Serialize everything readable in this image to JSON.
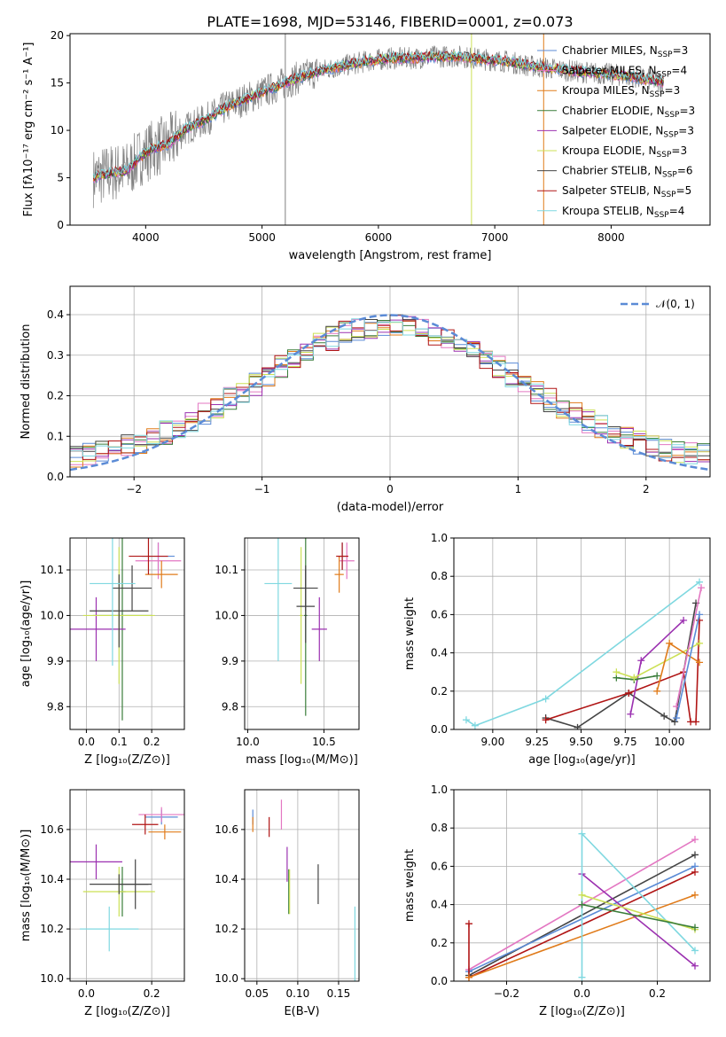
{
  "figure": {
    "title": "PLATE=1698, MJD=53146, FIBERID=0001, z=0.073"
  },
  "colors": {
    "grid": "#b0b0b0",
    "data_spectrum": "#808080",
    "normal_curve": "#5b8bd6"
  },
  "models": [
    {
      "key": "chabrier_miles",
      "label": "Chabrier MILES, N",
      "nssp": "3",
      "color": "#5b8bd6"
    },
    {
      "key": "salpeter_miles",
      "label": "Salpeter MILES, N",
      "nssp": "4",
      "color": "#e377c2"
    },
    {
      "key": "kroupa_miles",
      "label": "Kroupa MILES, N",
      "nssp": "3",
      "color": "#e07b1a"
    },
    {
      "key": "chabrier_elodie",
      "label": "Chabrier ELODIE, N",
      "nssp": "3",
      "color": "#3a7d3a"
    },
    {
      "key": "salpeter_elodie",
      "label": "Salpeter ELODIE, N",
      "nssp": "3",
      "color": "#9b30b0"
    },
    {
      "key": "kroupa_elodie",
      "label": "Kroupa ELODIE, N",
      "nssp": "3",
      "color": "#cce055"
    },
    {
      "key": "chabrier_stelib",
      "label": "Chabrier STELIB, N",
      "nssp": "6",
      "color": "#444444"
    },
    {
      "key": "salpeter_stelib",
      "label": "Salpeter STELIB, N",
      "nssp": "5",
      "color": "#b01515"
    },
    {
      "key": "kroupa_stelib",
      "label": "Kroupa STELIB, N",
      "nssp": "4",
      "color": "#7fd8e0"
    }
  ],
  "chart_data": [
    {
      "id": "spectrum",
      "type": "line",
      "xlabel": "wavelength [Angstrom, rest frame]",
      "ylabel_html": "Flux [fλ10⁻¹⁷ erg cm⁻² s⁻¹ A⁻¹]",
      "xlim": [
        3350,
        8850
      ],
      "ylim": [
        0,
        20.2
      ],
      "xticks": [
        4000,
        5000,
        6000,
        7000,
        8000
      ],
      "yticks": [
        0,
        5,
        10,
        15,
        20
      ],
      "legend_placement": "right",
      "grid": false,
      "continuum": {
        "x": [
          3550,
          3700,
          3850,
          3950,
          4050,
          4200,
          4350,
          4500,
          4700,
          4900,
          5100,
          5300,
          5500,
          5700,
          5900,
          6100,
          6300,
          6500,
          6700,
          6900,
          7100,
          7300,
          7500,
          7700,
          7900,
          8100,
          8300,
          8450
        ],
        "y": [
          5.0,
          5.5,
          5.8,
          7.2,
          8.0,
          8.6,
          10.2,
          11.0,
          12.5,
          13.5,
          14.5,
          15.5,
          16.3,
          16.8,
          17.3,
          17.6,
          17.6,
          17.8,
          17.8,
          17.5,
          17.3,
          16.8,
          16.5,
          16.2,
          16.0,
          15.8,
          15.4,
          15.1
        ]
      },
      "spike_lines": [
        {
          "x": 5200,
          "color": "#808080"
        },
        {
          "x": 6800,
          "color": "#cce055"
        },
        {
          "x": 7420,
          "color": "#e07b1a"
        }
      ]
    },
    {
      "id": "residuals",
      "type": "histogram",
      "xlabel": "(data-model)/error",
      "ylabel": "Normed distribution",
      "xlim": [
        -2.5,
        2.5
      ],
      "ylim": [
        0,
        0.47
      ],
      "xticks": [
        -2,
        -1,
        0,
        1,
        2
      ],
      "yticks": [
        0.0,
        0.1,
        0.2,
        0.3,
        0.4
      ],
      "grid": true,
      "legend": "𝒩(0, 1)",
      "legend_placement": "top-right",
      "bins": {
        "start": -2.5,
        "width": 0.1
      }
    },
    {
      "id": "age_vs_Z",
      "type": "errorbar",
      "xlabel": "Z [log₁₀(Z/Z⊙)]",
      "ylabel": "age  [log₁₀(age/yr)]",
      "xlim": [
        -0.05,
        0.3
      ],
      "ylim": [
        9.75,
        10.17
      ],
      "xticks": [
        0.0,
        0.1,
        0.2
      ],
      "yticks": [
        9.8,
        9.9,
        10.0,
        10.1
      ],
      "grid": true,
      "points": [
        {
          "m": 0,
          "x": 0.22,
          "y": 10.13,
          "xe": 0.05,
          "ye": 0.03
        },
        {
          "m": 1,
          "x": 0.22,
          "y": 10.12,
          "xe": 0.07,
          "ye": 0.04
        },
        {
          "m": 2,
          "x": 0.23,
          "y": 10.09,
          "xe": 0.05,
          "ye": 0.03
        },
        {
          "m": 3,
          "x": 0.11,
          "y": 10.0,
          "xe": 0.09,
          "ye": 0.23
        },
        {
          "m": 4,
          "x": 0.03,
          "y": 9.97,
          "xe": 0.09,
          "ye": 0.07
        },
        {
          "m": 5,
          "x": 0.1,
          "y": 10.0,
          "xe": 0.11,
          "ye": 0.15
        },
        {
          "m": 6,
          "x": 0.1,
          "y": 10.01,
          "xe": 0.09,
          "ye": 0.08
        },
        {
          "m": 6,
          "x": 0.14,
          "y": 10.06,
          "xe": 0.06,
          "ye": 0.05
        },
        {
          "m": 7,
          "x": 0.19,
          "y": 10.13,
          "xe": 0.06,
          "ye": 0.04
        },
        {
          "m": 8,
          "x": 0.08,
          "y": 10.07,
          "xe": 0.07,
          "ye": 0.18
        }
      ]
    },
    {
      "id": "age_vs_mass",
      "type": "errorbar",
      "xlabel": "mass [log₁₀(M/M⊙)]",
      "ylabel": "",
      "xlim": [
        9.98,
        10.73
      ],
      "ylim": [
        9.75,
        10.17
      ],
      "xticks": [
        10.0,
        10.5
      ],
      "yticks": [
        9.8,
        9.9,
        10.0,
        10.1
      ],
      "grid": true,
      "points": [
        {
          "m": 0,
          "x": 10.62,
          "y": 10.13,
          "xe": 0.02,
          "ye": 0.03
        },
        {
          "m": 1,
          "x": 10.65,
          "y": 10.12,
          "xe": 0.05,
          "ye": 0.04
        },
        {
          "m": 2,
          "x": 10.6,
          "y": 10.09,
          "xe": 0.03,
          "ye": 0.04
        },
        {
          "m": 3,
          "x": 10.38,
          "y": 10.0,
          "xe": 0.01,
          "ye": 0.22
        },
        {
          "m": 4,
          "x": 10.47,
          "y": 9.97,
          "xe": 0.05,
          "ye": 0.07
        },
        {
          "m": 5,
          "x": 10.35,
          "y": 10.0,
          "xe": 0.01,
          "ye": 0.15
        },
        {
          "m": 6,
          "x": 10.38,
          "y": 10.02,
          "xe": 0.06,
          "ye": 0.08
        },
        {
          "m": 6,
          "x": 10.38,
          "y": 10.06,
          "xe": 0.08,
          "ye": 0.05
        },
        {
          "m": 7,
          "x": 10.62,
          "y": 10.13,
          "xe": 0.04,
          "ye": 0.03
        },
        {
          "m": 8,
          "x": 10.2,
          "y": 10.07,
          "xe": 0.09,
          "ye": 0.17
        }
      ]
    },
    {
      "id": "mass_vs_Z",
      "type": "errorbar",
      "xlabel": "Z [log₁₀(Z/Z⊙)]",
      "ylabel": "mass [log₁₀(M/M⊙)]",
      "xlim": [
        -0.05,
        0.3
      ],
      "ylim": [
        9.99,
        10.76
      ],
      "xticks": [
        0.0,
        0.2
      ],
      "yticks": [
        10.0,
        10.2,
        10.4,
        10.6
      ],
      "grid": true,
      "points": [
        {
          "m": 0,
          "x": 0.23,
          "y": 10.65,
          "xe": 0.05,
          "ye": 0.03
        },
        {
          "m": 1,
          "x": 0.23,
          "y": 10.66,
          "xe": 0.07,
          "ye": 0.03
        },
        {
          "m": 2,
          "x": 0.24,
          "y": 10.59,
          "xe": 0.05,
          "ye": 0.03
        },
        {
          "m": 3,
          "x": 0.11,
          "y": 10.35,
          "xe": 0.01,
          "ye": 0.1
        },
        {
          "m": 4,
          "x": 0.03,
          "y": 10.47,
          "xe": 0.08,
          "ye": 0.07
        },
        {
          "m": 5,
          "x": 0.1,
          "y": 10.35,
          "xe": 0.11,
          "ye": 0.1
        },
        {
          "m": 6,
          "x": 0.1,
          "y": 10.38,
          "xe": 0.09,
          "ye": 0.04
        },
        {
          "m": 6,
          "x": 0.15,
          "y": 10.38,
          "xe": 0.05,
          "ye": 0.1
        },
        {
          "m": 7,
          "x": 0.18,
          "y": 10.62,
          "xe": 0.04,
          "ye": 0.04
        },
        {
          "m": 8,
          "x": 0.07,
          "y": 10.2,
          "xe": 0.09,
          "ye": 0.09
        }
      ]
    },
    {
      "id": "mass_vs_ebv",
      "type": "errorbar",
      "xlabel": "E(B-V)",
      "ylabel": "",
      "xlim": [
        0.035,
        0.175
      ],
      "ylim": [
        9.99,
        10.76
      ],
      "xticks": [
        0.05,
        0.1,
        0.15
      ],
      "yticks": [
        10.0,
        10.2,
        10.4,
        10.6
      ],
      "grid": true,
      "points": [
        {
          "m": 0,
          "x": 0.045,
          "y": 10.65,
          "xe": 0,
          "ye": 0.03
        },
        {
          "m": 1,
          "x": 0.08,
          "y": 10.66,
          "xe": 0,
          "ye": 0.06
        },
        {
          "m": 2,
          "x": 0.045,
          "y": 10.62,
          "xe": 0,
          "ye": 0.03
        },
        {
          "m": 3,
          "x": 0.089,
          "y": 10.35,
          "xe": 0,
          "ye": 0.09
        },
        {
          "m": 4,
          "x": 0.087,
          "y": 10.46,
          "xe": 0,
          "ye": 0.07
        },
        {
          "m": 5,
          "x": 0.09,
          "y": 10.35,
          "xe": 0,
          "ye": 0.09
        },
        {
          "m": 6,
          "x": 0.125,
          "y": 10.38,
          "xe": 0,
          "ye": 0.08
        },
        {
          "m": 7,
          "x": 0.065,
          "y": 10.61,
          "xe": 0,
          "ye": 0.04
        },
        {
          "m": 8,
          "x": 0.17,
          "y": 10.13,
          "xe": 0,
          "ye": 0.16
        }
      ]
    },
    {
      "id": "weight_vs_age",
      "type": "line",
      "xlabel": "age  [log₁₀(age/yr)]",
      "ylabel": "mass weight",
      "xlim": [
        8.78,
        10.23
      ],
      "ylim": [
        0,
        1.0
      ],
      "xticks": [
        9.0,
        9.25,
        9.5,
        9.75,
        10.0
      ],
      "yticks": [
        0.0,
        0.2,
        0.4,
        0.6,
        0.8,
        1.0
      ],
      "grid": true,
      "series": [
        {
          "m": 8,
          "x": [
            8.85,
            8.9,
            9.3,
            10.17
          ],
          "y": [
            0.05,
            0.02,
            0.16,
            0.77
          ]
        },
        {
          "m": 6,
          "x": [
            9.3,
            9.48,
            9.77,
            9.97,
            10.03,
            10.15
          ],
          "y": [
            0.06,
            0.01,
            0.19,
            0.07,
            0.04,
            0.66
          ]
        },
        {
          "m": 7,
          "x": [
            9.3,
            9.77,
            10.08,
            10.12,
            10.15,
            10.17
          ],
          "y": [
            0.05,
            0.19,
            0.3,
            0.04,
            0.04,
            0.57
          ]
        },
        {
          "m": 4,
          "x": [
            9.78,
            9.84,
            10.08
          ],
          "y": [
            0.08,
            0.36,
            0.57
          ]
        },
        {
          "m": 3,
          "x": [
            9.7,
            9.8,
            9.93
          ],
          "y": [
            0.27,
            0.26,
            0.28
          ]
        },
        {
          "m": 5,
          "x": [
            9.7,
            9.8,
            10.17
          ],
          "y": [
            0.3,
            0.27,
            0.45
          ]
        },
        {
          "m": 2,
          "x": [
            9.93,
            10.0,
            10.17
          ],
          "y": [
            0.2,
            0.45,
            0.35
          ]
        },
        {
          "m": 1,
          "x": [
            10.04,
            10.18
          ],
          "y": [
            0.12,
            0.74
          ]
        },
        {
          "m": 0,
          "x": [
            10.04,
            10.17
          ],
          "y": [
            0.06,
            0.6
          ]
        }
      ]
    },
    {
      "id": "weight_vs_Z",
      "type": "line",
      "xlabel": "Z [log₁₀(Z/Z⊙)]",
      "ylabel": "mass weight",
      "xlim": [
        -0.34,
        0.34
      ],
      "ylim": [
        0,
        1.0
      ],
      "xticks": [
        -0.2,
        0.0,
        0.2
      ],
      "yticks": [
        0.0,
        0.2,
        0.4,
        0.6,
        0.8,
        1.0
      ],
      "grid": true,
      "series": [
        {
          "m": 1,
          "x": [
            -0.3,
            0.3
          ],
          "y": [
            0.06,
            0.74
          ]
        },
        {
          "m": 6,
          "x": [
            -0.3,
            0.3
          ],
          "y": [
            0.03,
            0.66
          ]
        },
        {
          "m": 0,
          "x": [
            -0.3,
            0.3
          ],
          "y": [
            0.05,
            0.6
          ]
        },
        {
          "m": 7,
          "x": [
            -0.3,
            -0.3,
            0.3
          ],
          "y": [
            0.3,
            0.02,
            0.57
          ]
        },
        {
          "m": 2,
          "x": [
            -0.3,
            0.3
          ],
          "y": [
            0.02,
            0.45
          ]
        },
        {
          "m": 4,
          "x": [
            0.0,
            0.3
          ],
          "y": [
            0.56,
            0.08
          ]
        },
        {
          "m": 8,
          "x": [
            0.0,
            0.0,
            0.3
          ],
          "y": [
            0.02,
            0.77,
            0.16
          ]
        },
        {
          "m": 5,
          "x": [
            0.0,
            0.3
          ],
          "y": [
            0.45,
            0.27
          ]
        },
        {
          "m": 3,
          "x": [
            0.0,
            0.3
          ],
          "y": [
            0.4,
            0.28
          ]
        }
      ]
    }
  ]
}
